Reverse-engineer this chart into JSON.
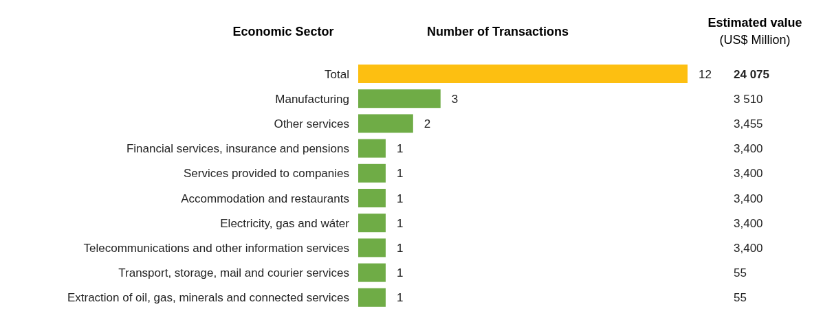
{
  "chart_data": {
    "type": "bar",
    "orientation": "horizontal",
    "title": "Number of Transactions",
    "ylabel": "Economic Sector",
    "categories": [
      "Total",
      "Manufacturing",
      "Other services",
      "Financial services, insurance and pensions",
      "Services provided to companies",
      "Accommodation and restaurants",
      "Electricity, gas and wáter",
      "Telecommunications and other information services",
      "Transport, storage, mail and courier services",
      "Extraction of oil, gas, minerals and connected services"
    ],
    "values": [
      12,
      3,
      2,
      1,
      1,
      1,
      1,
      1,
      1,
      1
    ],
    "colors": [
      "#fdbf11",
      "#6fac46",
      "#6fac46",
      "#6fac46",
      "#6fac46",
      "#6fac46",
      "#6fac46",
      "#6fac46",
      "#6fac46",
      "#6fac46"
    ],
    "data_labels": true,
    "annotations": [
      "Estimated value",
      "(US$ Million)",
      "24 075",
      "3 510",
      "3,455",
      "3,400",
      "3,400",
      "3,400",
      "3,400",
      "3,400",
      "55",
      "55"
    ]
  }
}
